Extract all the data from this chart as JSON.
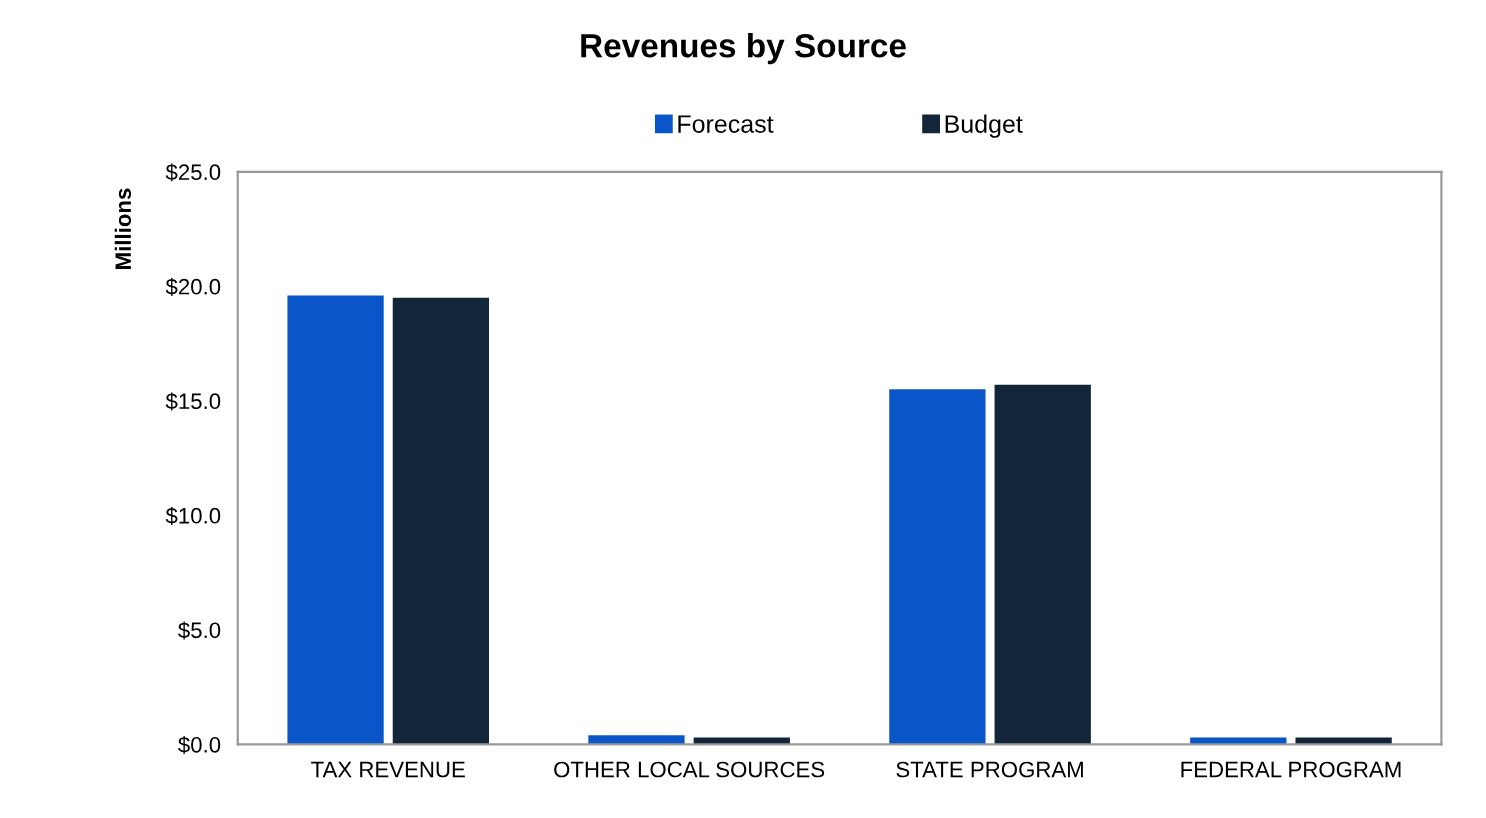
{
  "chart_data": {
    "type": "bar",
    "title": "Revenues by Source",
    "ylabel": "Millions",
    "categories": [
      "TAX REVENUE",
      "OTHER LOCAL SOURCES",
      "STATE PROGRAM",
      "FEDERAL PROGRAM"
    ],
    "series": [
      {
        "name": "Forecast",
        "color": "#0a56c8",
        "values": [
          19.6,
          0.4,
          15.5,
          0.3
        ]
      },
      {
        "name": "Budget",
        "color": "#132538",
        "values": [
          19.5,
          0.3,
          15.7,
          0.3
        ]
      }
    ],
    "ylim": [
      0,
      25
    ],
    "yticks": [
      {
        "value": 0,
        "label": "$0.0"
      },
      {
        "value": 5,
        "label": "$5.0"
      },
      {
        "value": 10,
        "label": "$10.0"
      },
      {
        "value": 15,
        "label": "$15.0"
      },
      {
        "value": 20,
        "label": "$20.0"
      },
      {
        "value": 25,
        "label": "$25.0"
      }
    ],
    "grid": false,
    "legend": "top"
  }
}
